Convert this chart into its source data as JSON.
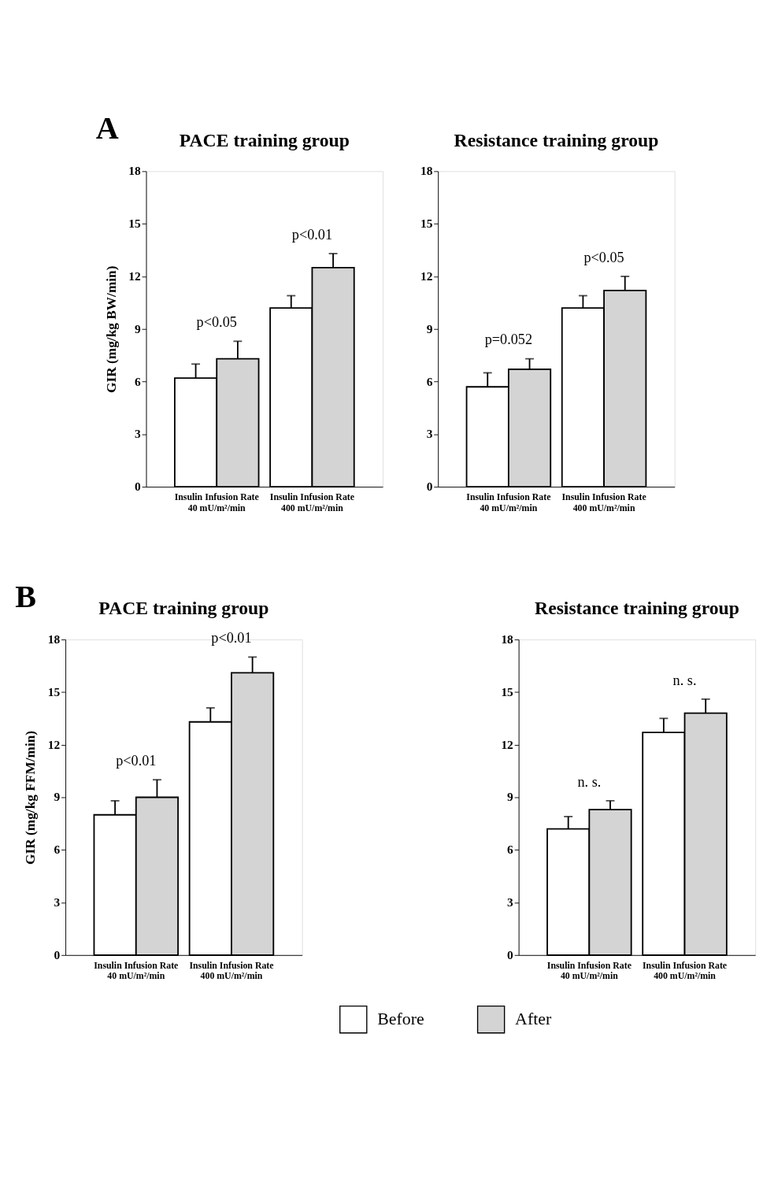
{
  "chart_data": [
    {
      "type": "bar",
      "title": "PACE training group",
      "ylabel": "GIR (mg/kg BW/min)",
      "categories": [
        "Insulin Infusion Rate\n40 mU/m²/min",
        "Insulin Infusion Rate\n400 mU/m²/min"
      ],
      "ylim": [
        0,
        18
      ],
      "yticks": [
        0,
        3,
        6,
        9,
        12,
        15,
        18
      ],
      "grid": false,
      "series": [
        {
          "color": "#ffffff",
          "values": [
            6.2,
            10.2
          ],
          "errors": [
            0.8,
            0.7
          ]
        },
        {
          "color": "#d4d4d4",
          "values": [
            7.3,
            12.5
          ],
          "errors": [
            1.0,
            0.8
          ]
        }
      ],
      "annotations": [
        "A",
        "p<0.05",
        "p<0.01"
      ]
    },
    {
      "type": "bar",
      "title": "Resistance training group",
      "categories": [
        "Insulin Infusion Rate\n40 mU/m²/min",
        "Insulin Infusion Rate\n400 mU/m²/min"
      ],
      "ylim": [
        0,
        18
      ],
      "yticks": [
        0,
        3,
        6,
        9,
        12,
        15,
        18
      ],
      "grid": false,
      "series": [
        {
          "color": "#ffffff",
          "values": [
            5.7,
            10.2
          ],
          "errors": [
            0.8,
            0.7
          ]
        },
        {
          "color": "#d4d4d4",
          "values": [
            6.7,
            11.2
          ],
          "errors": [
            0.6,
            0.8
          ]
        }
      ],
      "annotations": [
        "p=0.052",
        "p<0.05"
      ]
    },
    {
      "type": "bar",
      "title": "PACE training group",
      "ylabel": "GIR (mg/kg FFM/min)",
      "categories": [
        "Insulin Infusion Rate\n40 mU/m²/min",
        "Insulin Infusion Rate\n400 mU/m²/min"
      ],
      "ylim": [
        0,
        18
      ],
      "yticks": [
        0,
        3,
        6,
        9,
        12,
        15,
        18
      ],
      "grid": false,
      "series": [
        {
          "color": "#ffffff",
          "values": [
            8.0,
            13.3
          ],
          "errors": [
            0.8,
            0.8
          ]
        },
        {
          "color": "#d4d4d4",
          "values": [
            9.0,
            16.1
          ],
          "errors": [
            1.0,
            0.9
          ]
        }
      ],
      "annotations": [
        "B",
        "p<0.01",
        "p<0.01"
      ]
    },
    {
      "type": "bar",
      "title": "Resistance training group",
      "categories": [
        "Insulin Infusion Rate\n40 mU/m²/min",
        "Insulin Infusion Rate\n400 mU/m²/min"
      ],
      "ylim": [
        0,
        18
      ],
      "yticks": [
        0,
        3,
        6,
        9,
        12,
        15,
        18
      ],
      "grid": false,
      "legend": "bottom",
      "series": [
        {
          "name": "Before",
          "color": "#ffffff",
          "values": [
            7.2,
            12.7
          ],
          "errors": [
            0.7,
            0.8
          ]
        },
        {
          "name": "After",
          "color": "#d4d4d4",
          "values": [
            8.3,
            13.8
          ],
          "errors": [
            0.5,
            0.8
          ]
        }
      ],
      "annotations": [
        "n. s.",
        "n. s."
      ]
    }
  ]
}
